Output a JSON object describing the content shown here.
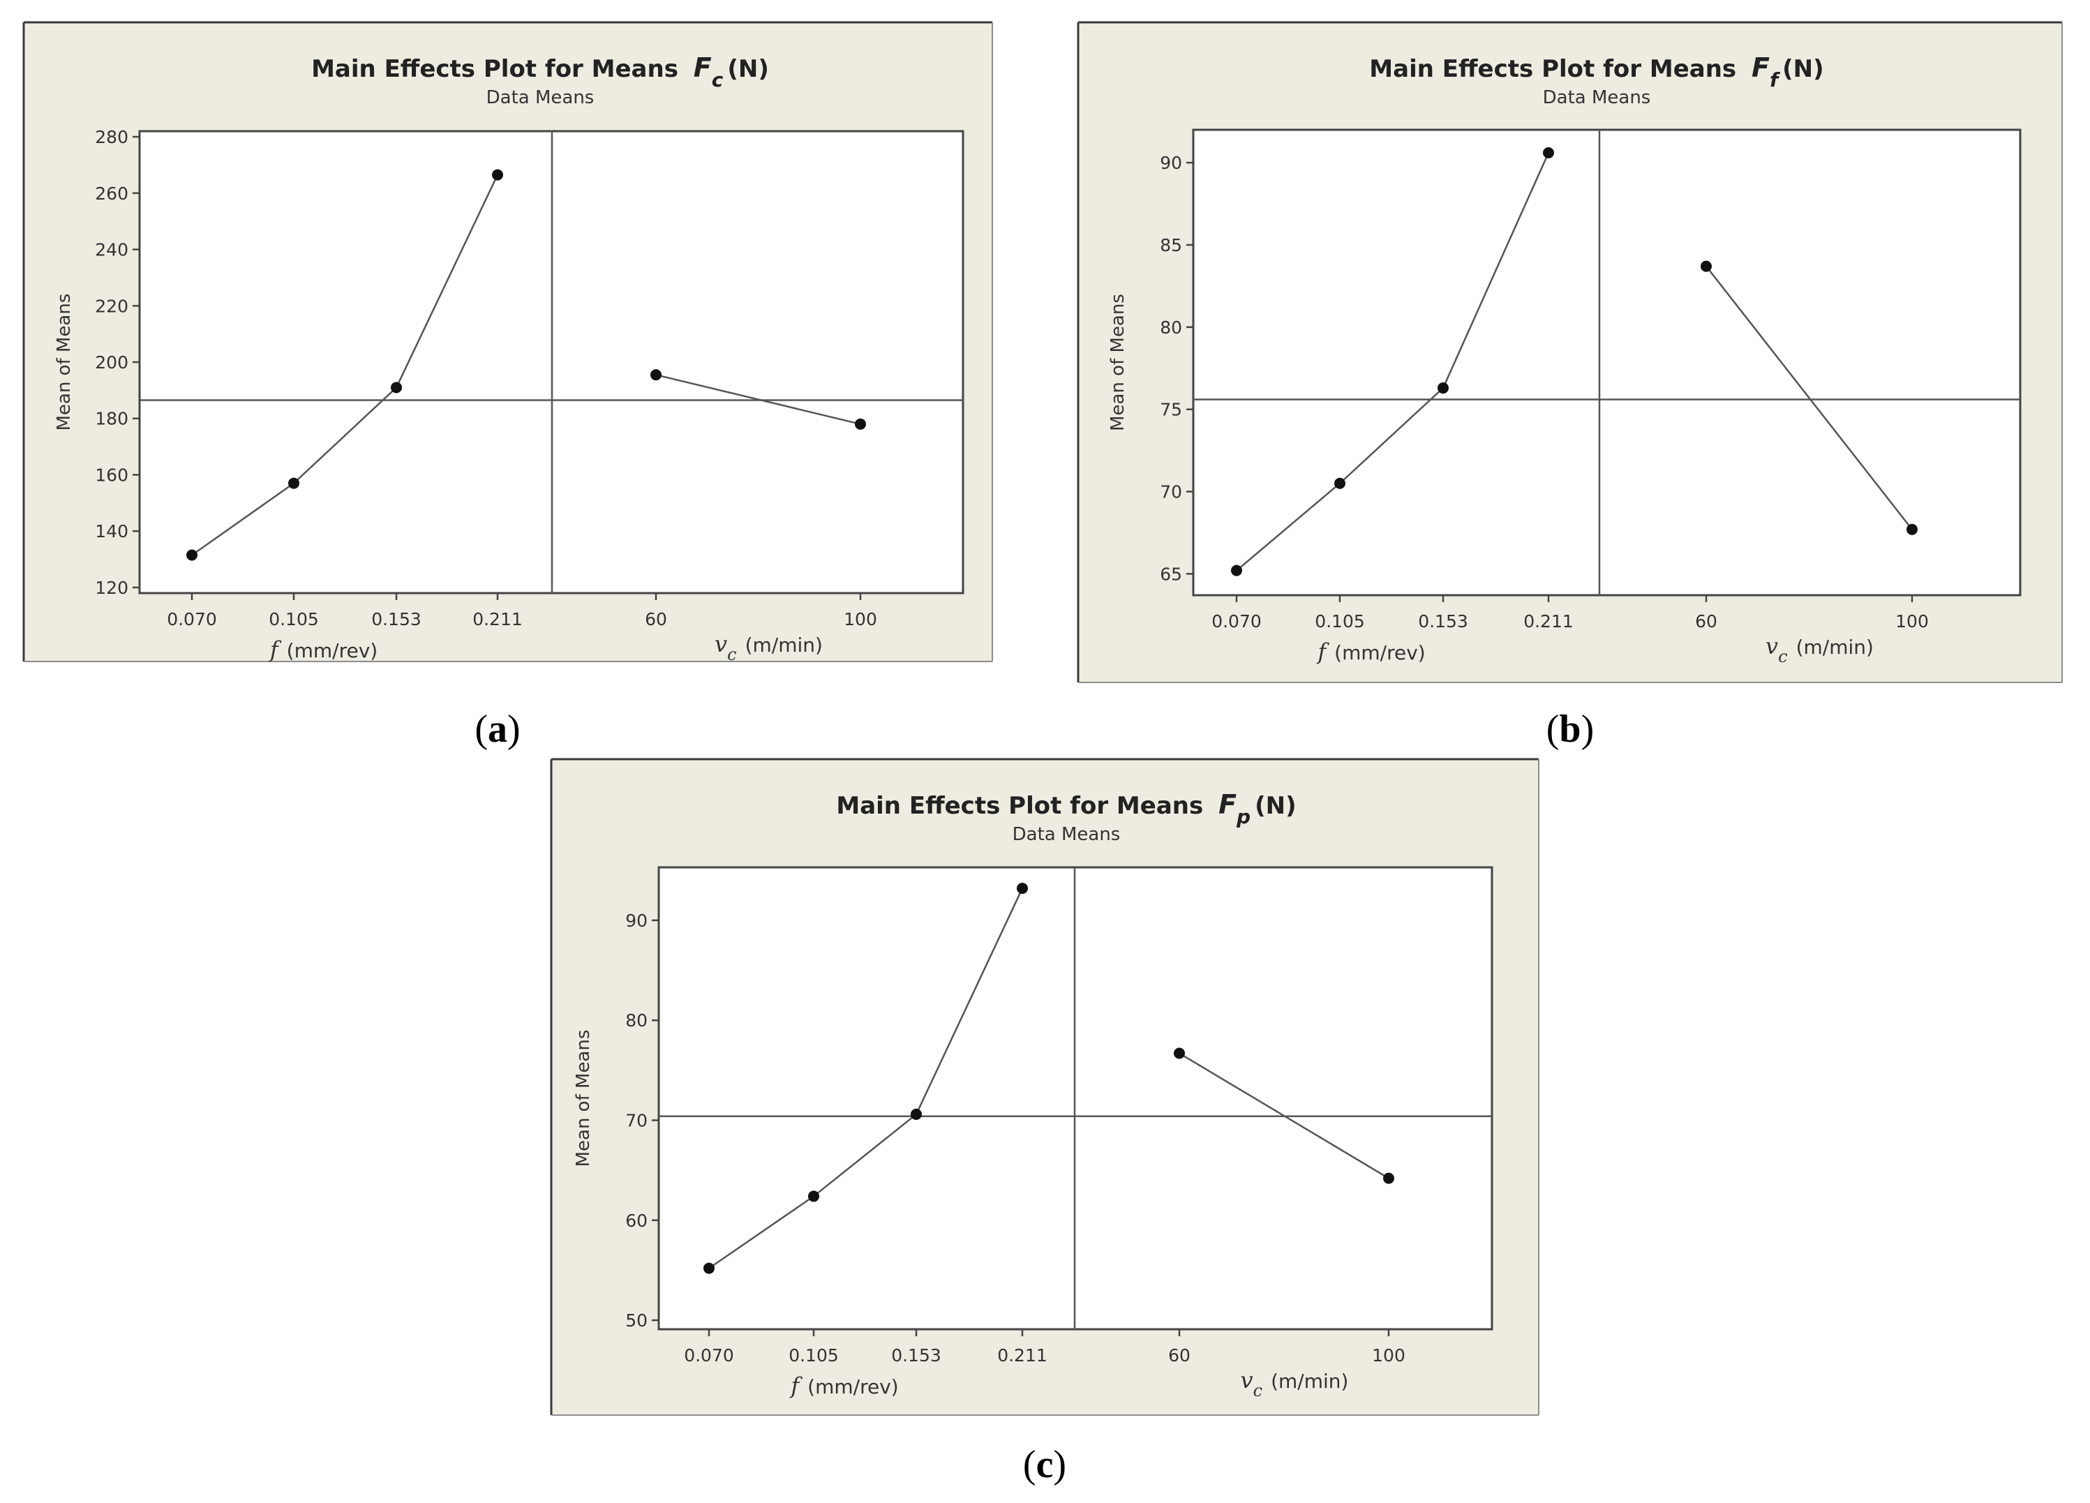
{
  "figure": {
    "panels": [
      {
        "id": "a",
        "caption_open": "(",
        "caption_letter": "a",
        "caption_close": ")",
        "title_prefix": "Main Effects Plot for Means",
        "title_symbol": "F",
        "title_symbol_sub": "c",
        "title_unit": "(N)",
        "subtitle": "Data Means",
        "ylabel": "Mean of Means",
        "x1_var": "f",
        "x1_unit": "(mm/rev)",
        "x2_var": "v",
        "x2_sub": "c",
        "x2_unit": "(m/min)"
      },
      {
        "id": "b",
        "caption_open": "(",
        "caption_letter": "b",
        "caption_close": ")",
        "title_prefix": "Main Effects Plot for Means",
        "title_symbol": "F",
        "title_symbol_sub": "f",
        "title_unit": "(N)",
        "subtitle": "Data Means",
        "ylabel": "Mean of Means",
        "x1_var": "f",
        "x1_unit": "(mm/rev)",
        "x2_var": "v",
        "x2_sub": "c",
        "x2_unit": "(m/min)"
      },
      {
        "id": "c",
        "caption_open": "(",
        "caption_letter": "c",
        "caption_close": ")",
        "title_prefix": "Main Effects Plot for Means",
        "title_symbol": "F",
        "title_symbol_sub": "p",
        "title_unit": "(N)",
        "subtitle": "Data Means",
        "ylabel": "Mean of Means",
        "x1_var": "f",
        "x1_unit": "(mm/rev)",
        "x2_var": "v",
        "x2_sub": "c",
        "x2_unit": "(m/min)"
      }
    ]
  },
  "chart_data": [
    {
      "type": "line",
      "panel": "a",
      "title": "Main Effects Plot for Means Fc (N)",
      "subtitle": "Data Means",
      "ylabel": "Mean of Means",
      "ylim": [
        118,
        282
      ],
      "yticks": [
        120,
        140,
        160,
        180,
        200,
        220,
        240,
        260,
        280
      ],
      "grand_mean": 186.5,
      "factors": [
        {
          "name": "f (mm/rev)",
          "levels": [
            "0.070",
            "0.105",
            "0.153",
            "0.211"
          ],
          "means": [
            131.5,
            157,
            191,
            266.5
          ]
        },
        {
          "name": "vc (m/min)",
          "levels": [
            "60",
            "100"
          ],
          "means": [
            195.5,
            178
          ]
        }
      ]
    },
    {
      "type": "line",
      "panel": "b",
      "title": "Main Effects Plot for Means Ff (N)",
      "subtitle": "Data Means",
      "ylabel": "Mean of Means",
      "ylim": [
        63.7,
        92
      ],
      "yticks": [
        65,
        70,
        75,
        80,
        85,
        90
      ],
      "grand_mean": 75.6,
      "factors": [
        {
          "name": "f (mm/rev)",
          "levels": [
            "0.070",
            "0.105",
            "0.153",
            "0.211"
          ],
          "means": [
            65.2,
            70.5,
            76.3,
            90.6
          ]
        },
        {
          "name": "vc (m/min)",
          "levels": [
            "60",
            "100"
          ],
          "means": [
            83.7,
            67.7
          ]
        }
      ]
    },
    {
      "type": "line",
      "panel": "c",
      "title": "Main Effects Plot for Means Fp (N)",
      "subtitle": "Data Means",
      "ylabel": "Mean of Means",
      "ylim": [
        49.1,
        95.3
      ],
      "yticks": [
        50,
        60,
        70,
        80,
        90
      ],
      "grand_mean": 70.4,
      "factors": [
        {
          "name": "f (mm/rev)",
          "levels": [
            "0.070",
            "0.105",
            "0.153",
            "0.211"
          ],
          "means": [
            55.2,
            62.4,
            70.6,
            93.2
          ]
        },
        {
          "name": "vc (m/min)",
          "levels": [
            "60",
            "100"
          ],
          "means": [
            76.7,
            64.2
          ]
        }
      ]
    }
  ]
}
